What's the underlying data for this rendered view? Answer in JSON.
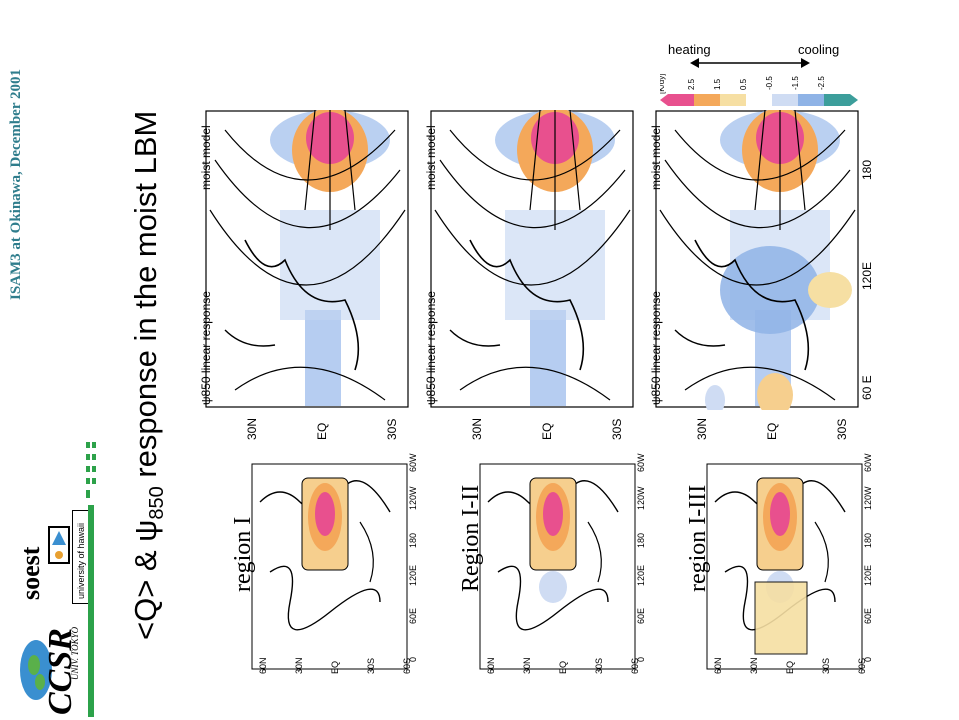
{
  "header": {
    "conference": "ISAM3 at Okinawa, December 2001"
  },
  "title": {
    "prefix": "<Q> & ",
    "psi": "ψ",
    "sub": "850",
    "suffix": " response in the moist LBM"
  },
  "logos": {
    "ccsr": "CCSR",
    "ccsr_sub": "UNIV. TOKYO",
    "soest": "soest",
    "hawaii": "university of hawaii"
  },
  "forcing_maps": [
    {
      "label": "region I",
      "lat_ticks": [
        "60N",
        "30N",
        "EQ",
        "30S",
        "60S"
      ],
      "lon_ticks": [
        "0",
        "60E",
        "120E",
        "180",
        "120W",
        "60W"
      ]
    },
    {
      "label": "Region I-II",
      "lat_ticks": [
        "60N",
        "30N",
        "EQ",
        "30S",
        "60S"
      ],
      "lon_ticks": [
        "0",
        "60E",
        "120E",
        "180",
        "120W",
        "60W"
      ]
    },
    {
      "label": "region I-III",
      "lat_ticks": [
        "60N",
        "30N",
        "EQ",
        "30S",
        "60S"
      ],
      "lon_ticks": [
        "0",
        "60E",
        "120E",
        "180",
        "120W",
        "60W"
      ]
    }
  ],
  "response_maps": [
    {
      "left_label": "ψ850 linear response",
      "right_label": "moist model"
    },
    {
      "left_label": "ψ850 linear response",
      "right_label": "moist model"
    },
    {
      "left_label": "ψ850 linear response",
      "right_label": "moist model"
    }
  ],
  "response_axis": {
    "lat_ticks": [
      "30N",
      "EQ",
      "30S"
    ],
    "lon_ticks": [
      "60 E",
      "120E",
      "180"
    ]
  },
  "colorbar": {
    "heating": "heating",
    "cooling": "cooling",
    "unit": "[K/dy]",
    "values": [
      "2.5",
      "1.5",
      "0.5",
      "-0.5",
      "-1.5",
      "-2.5"
    ],
    "colors": {
      "heat_strong": "#e8508e",
      "heat_mid": "#f4a85a",
      "heat_weak": "#f6dfa3",
      "cool_weak": "#cfdcf3",
      "cool_mid": "#8fb3e6",
      "cool_strong": "#3c9e9b"
    }
  }
}
